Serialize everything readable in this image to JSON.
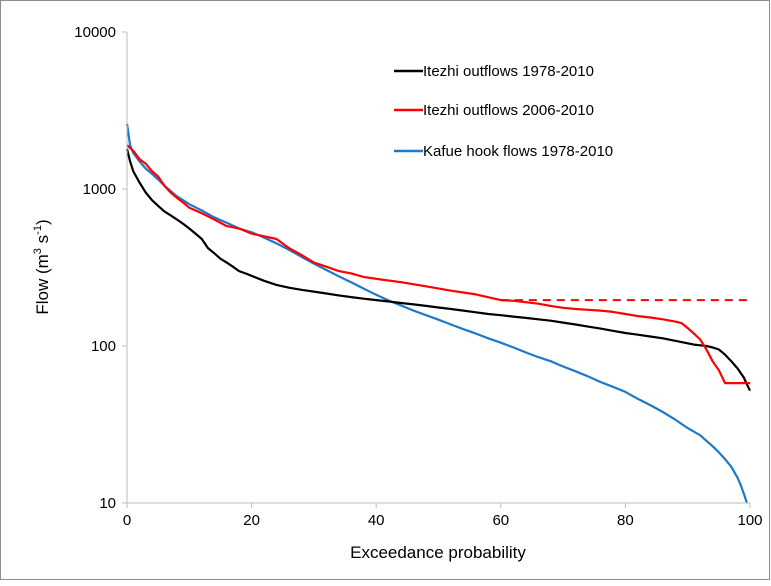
{
  "chart_data": {
    "type": "line",
    "xlabel": "Exceedance probability",
    "ylabel": {
      "prefix": "Flow (m",
      "sup1": "3",
      "mid": " s",
      "sup2": "-1",
      "suffix": ")"
    },
    "xlim": [
      0,
      100
    ],
    "ylim": [
      10,
      10000
    ],
    "yscale": "log",
    "grid": false,
    "legend_position": "top-right",
    "x_ticks": [
      "0",
      "20",
      "40",
      "60",
      "80",
      "100"
    ],
    "y_ticks": [
      "10",
      "100",
      "1000",
      "10000"
    ],
    "series": [
      {
        "name": "Itezhi outflows 1978-2010",
        "color": "#000000",
        "x": [
          0,
          0.5,
          1,
          2,
          3,
          4,
          5,
          6,
          7,
          8,
          9,
          10,
          11,
          12,
          13,
          14,
          15,
          16,
          17,
          18,
          19,
          20,
          22,
          24,
          26,
          28,
          30,
          32,
          34,
          36,
          38,
          40,
          42,
          44,
          46,
          48,
          50,
          52,
          54,
          56,
          58,
          60,
          62,
          64,
          66,
          68,
          70,
          72,
          74,
          76,
          78,
          80,
          82,
          84,
          86,
          88,
          90,
          91,
          92,
          93,
          94,
          95,
          96,
          97,
          98,
          99,
          99.5,
          100
        ],
        "y": [
          1800,
          1500,
          1300,
          1100,
          950,
          850,
          780,
          720,
          680,
          640,
          600,
          560,
          520,
          480,
          420,
          390,
          360,
          340,
          320,
          300,
          290,
          280,
          260,
          245,
          235,
          228,
          222,
          216,
          210,
          205,
          200,
          196,
          192,
          188,
          184,
          180,
          176,
          172,
          168,
          164,
          160,
          157,
          154,
          151,
          148,
          145,
          141,
          137,
          133,
          129,
          125,
          121,
          118,
          115,
          112,
          108,
          104,
          102,
          101,
          100,
          98,
          95,
          88,
          80,
          72,
          63,
          57,
          52
        ]
      },
      {
        "name": "Itezhi outflows 2006-2010",
        "color": "#ff0000",
        "x": [
          0,
          1,
          2,
          3,
          4,
          5,
          6,
          7,
          8,
          9,
          10,
          12,
          14,
          16,
          18,
          20,
          22,
          24,
          26,
          28,
          30,
          32,
          34,
          36,
          38,
          40,
          44,
          48,
          52,
          56,
          60,
          62,
          64,
          66,
          68,
          70,
          72,
          74,
          76,
          78,
          80,
          82,
          84,
          86,
          88,
          89,
          90,
          91,
          92,
          93,
          94,
          95,
          96,
          98,
          100
        ],
        "y": [
          1900,
          1750,
          1550,
          1450,
          1300,
          1200,
          1050,
          950,
          880,
          820,
          760,
          700,
          640,
          580,
          560,
          520,
          500,
          480,
          420,
          380,
          340,
          320,
          300,
          290,
          275,
          268,
          255,
          240,
          225,
          213,
          196,
          194,
          190,
          186,
          180,
          175,
          172,
          170,
          168,
          165,
          160,
          155,
          152,
          148,
          143,
          140,
          130,
          120,
          110,
          95,
          80,
          70,
          58,
          58,
          58
        ]
      },
      {
        "name": "Kafue hook flows 1978-2010",
        "color": "#1f78c8",
        "x": [
          0,
          0.5,
          1,
          2,
          3,
          4,
          5,
          6,
          8,
          10,
          12,
          14,
          16,
          18,
          20,
          22,
          24,
          26,
          28,
          30,
          32,
          34,
          36,
          38,
          40,
          42,
          44,
          46,
          48,
          50,
          52,
          54,
          56,
          58,
          60,
          62,
          64,
          66,
          68,
          70,
          72,
          74,
          76,
          78,
          80,
          82,
          84,
          86,
          88,
          90,
          92,
          94,
          95,
          96,
          97,
          98,
          98.5,
          99,
          99.5
        ],
        "y": [
          2600,
          1900,
          1700,
          1500,
          1350,
          1250,
          1150,
          1050,
          900,
          800,
          730,
          660,
          610,
          560,
          530,
          490,
          450,
          410,
          370,
          335,
          305,
          278,
          254,
          232,
          212,
          195,
          181,
          168,
          157,
          147,
          137,
          128,
          120,
          112,
          105,
          98,
          91,
          85,
          80,
          74,
          69,
          64,
          59,
          55,
          51,
          46,
          42,
          38,
          34,
          30,
          27,
          23,
          21,
          19,
          17,
          14.5,
          13,
          11.5,
          10
        ]
      }
    ],
    "extension": {
      "style": "dashed",
      "color": "#ff0000",
      "x": [
        60,
        100
      ],
      "y": [
        196,
        196
      ]
    }
  }
}
